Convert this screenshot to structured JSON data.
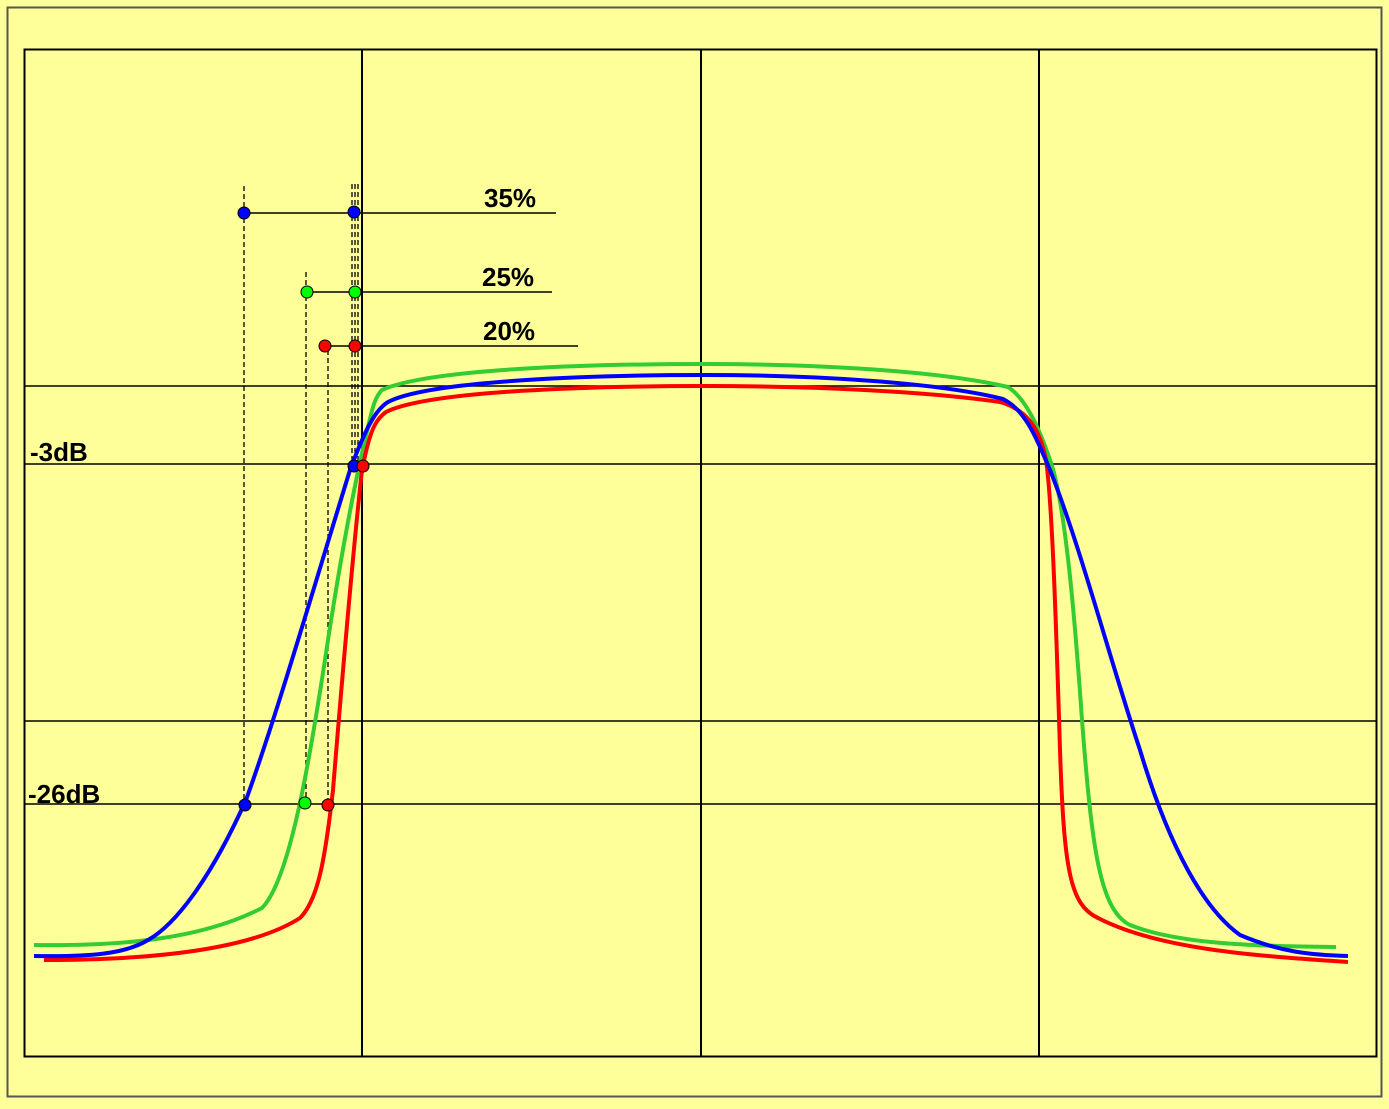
{
  "labels": {
    "minus3db": "-3dB",
    "minus26db": "-26dB",
    "rolloff35": "35%",
    "rolloff25": "25%",
    "rolloff20": "20%"
  },
  "colors": {
    "background": "#ffff99",
    "grid": "#000000",
    "curve_35": "#0000ff",
    "curve_25": "#33cc33",
    "curve_20": "#ff0000",
    "marker_35": "#0000ff",
    "marker_25": "#00ff00",
    "marker_20": "#ff0000"
  }
}
